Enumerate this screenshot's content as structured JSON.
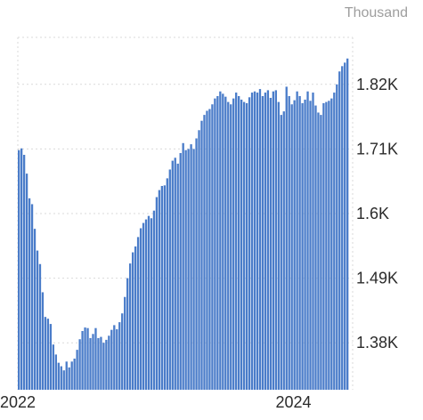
{
  "chart_data": {
    "type": "bar",
    "unit_label": "Thousand",
    "colors": {
      "bar": "#4a7cc9",
      "grid": "#d9d9d9",
      "text": "#2b2b2b",
      "unit": "#9e9e9e"
    },
    "grid": true,
    "ylim": [
      1300,
      1900
    ],
    "y_ticks": [
      {
        "value": 1380,
        "label": "1.38K"
      },
      {
        "value": 1490,
        "label": "1.49K"
      },
      {
        "value": 1600,
        "label": "1.6K"
      },
      {
        "value": 1710,
        "label": "1.71K"
      },
      {
        "value": 1820,
        "label": "1.82K"
      }
    ],
    "x_ticks": [
      {
        "index": 0,
        "label": "2022"
      },
      {
        "index": 104,
        "label": "2024"
      }
    ],
    "values": [
      1708,
      1711,
      1700,
      1668,
      1626,
      1616,
      1574,
      1537,
      1514,
      1466,
      1424,
      1421,
      1412,
      1377,
      1360,
      1346,
      1340,
      1333,
      1348,
      1338,
      1348,
      1353,
      1368,
      1386,
      1400,
      1406,
      1405,
      1388,
      1395,
      1405,
      1388,
      1390,
      1380,
      1385,
      1392,
      1402,
      1410,
      1403,
      1415,
      1430,
      1458,
      1490,
      1515,
      1534,
      1544,
      1560,
      1575,
      1584,
      1590,
      1596,
      1592,
      1605,
      1628,
      1640,
      1647,
      1648,
      1660,
      1675,
      1690,
      1695,
      1685,
      1703,
      1720,
      1708,
      1710,
      1718,
      1710,
      1728,
      1742,
      1758,
      1768,
      1775,
      1778,
      1786,
      1796,
      1800,
      1808,
      1804,
      1799,
      1790,
      1786,
      1796,
      1806,
      1800,
      1794,
      1790,
      1788,
      1798,
      1806,
      1808,
      1806,
      1812,
      1800,
      1806,
      1810,
      1797,
      1808,
      1810,
      1790,
      1768,
      1774,
      1816,
      1800,
      1786,
      1793,
      1808,
      1800,
      1788,
      1794,
      1808,
      1792,
      1806,
      1784,
      1772,
      1768,
      1788,
      1790,
      1792,
      1796,
      1806,
      1820,
      1842,
      1851,
      1857,
      1864
    ]
  }
}
